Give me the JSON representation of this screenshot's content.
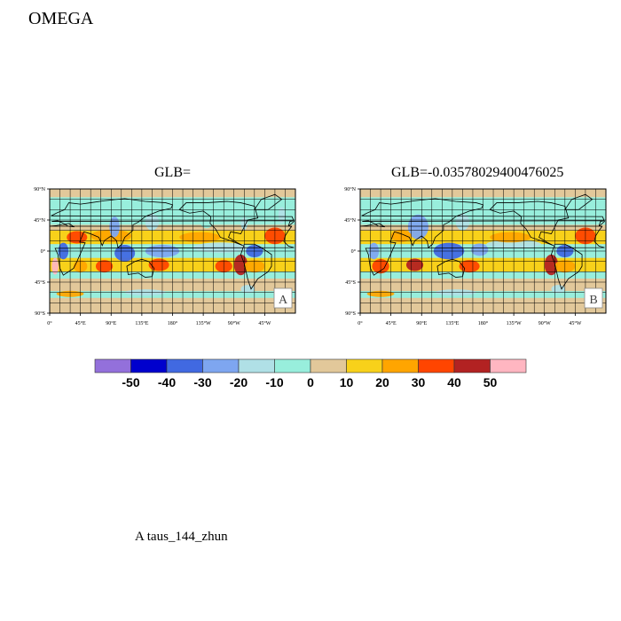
{
  "figure": {
    "title": "OMEGA",
    "caption": "A  taus_144_zhun"
  },
  "chart_data": [
    {
      "type": "heatmap",
      "panel_label": "A",
      "title": "GLB=",
      "x_ticks": [
        "0°",
        "45°E",
        "90°E",
        "135°E",
        "180°",
        "135°W",
        "90°W",
        "45°W"
      ],
      "y_ticks": [
        "90°N",
        "45°N",
        "0°",
        "45°S",
        "90°S"
      ],
      "xlim": [
        0,
        360
      ],
      "ylim": [
        -90,
        90
      ],
      "features": [
        {
          "lon": 165,
          "lat": 0,
          "w": 50,
          "h": 6,
          "v": -30
        },
        {
          "lon": 250,
          "lat": 5,
          "w": 80,
          "h": 5,
          "v": -20
        },
        {
          "lon": 300,
          "lat": 0,
          "w": 25,
          "h": 6,
          "v": -40
        },
        {
          "lon": 20,
          "lat": 0,
          "w": 15,
          "h": 8,
          "v": -40
        },
        {
          "lon": 110,
          "lat": -3,
          "w": 30,
          "h": 8,
          "v": -40
        },
        {
          "lon": 280,
          "lat": -20,
          "w": 20,
          "h": 10,
          "v": 40
        },
        {
          "lon": 255,
          "lat": -22,
          "w": 25,
          "h": 6,
          "v": 30
        },
        {
          "lon": 8,
          "lat": -22,
          "w": 10,
          "h": 8,
          "v": 50
        },
        {
          "lon": 45,
          "lat": -22,
          "w": 20,
          "h": 6,
          "v": 20
        },
        {
          "lon": 80,
          "lat": -22,
          "w": 25,
          "h": 6,
          "v": 30
        },
        {
          "lon": 160,
          "lat": -20,
          "w": 30,
          "h": 6,
          "v": 30
        },
        {
          "lon": 300,
          "lat": -22,
          "w": 30,
          "h": 6,
          "v": 20
        },
        {
          "lon": 330,
          "lat": 22,
          "w": 30,
          "h": 8,
          "v": 30
        },
        {
          "lon": 90,
          "lat": 22,
          "w": 60,
          "h": 6,
          "v": 20
        },
        {
          "lon": 220,
          "lat": 20,
          "w": 60,
          "h": 5,
          "v": 20
        },
        {
          "lon": 40,
          "lat": 20,
          "w": 30,
          "h": 6,
          "v": 30
        },
        {
          "lon": 340,
          "lat": 52,
          "w": 10,
          "h": 8,
          "v": -20
        },
        {
          "lon": 150,
          "lat": 42,
          "w": 20,
          "h": 8,
          "v": -20
        },
        {
          "lon": 230,
          "lat": 45,
          "w": 20,
          "h": 8,
          "v": -10
        },
        {
          "lon": 285,
          "lat": 40,
          "w": 10,
          "h": 6,
          "v": -20
        },
        {
          "lon": 95,
          "lat": 35,
          "w": 15,
          "h": 10,
          "v": -30
        },
        {
          "lon": 290,
          "lat": -55,
          "w": 20,
          "h": 4,
          "v": -20
        },
        {
          "lon": 140,
          "lat": -60,
          "w": 60,
          "h": 3,
          "v": -20
        },
        {
          "lon": 30,
          "lat": -62,
          "w": 40,
          "h": 3,
          "v": 20
        },
        {
          "lon": 300,
          "lat": 60,
          "w": 15,
          "h": 6,
          "v": -10
        }
      ]
    },
    {
      "type": "heatmap",
      "panel_label": "B",
      "title": "GLB=-0.03578029400476025",
      "x_ticks": [
        "0°",
        "45°E",
        "90°E",
        "135°E",
        "180°",
        "135°W",
        "90°W",
        "45°W"
      ],
      "y_ticks": [
        "90°N",
        "45°N",
        "0°",
        "45°S",
        "90°S"
      ],
      "xlim": [
        0,
        360
      ],
      "ylim": [
        -90,
        90
      ],
      "features": [
        {
          "lon": 130,
          "lat": 0,
          "w": 45,
          "h": 8,
          "v": -40
        },
        {
          "lon": 175,
          "lat": 2,
          "w": 25,
          "h": 6,
          "v": -30
        },
        {
          "lon": 300,
          "lat": 0,
          "w": 25,
          "h": 6,
          "v": -40
        },
        {
          "lon": 20,
          "lat": 0,
          "w": 15,
          "h": 8,
          "v": -30
        },
        {
          "lon": 85,
          "lat": 35,
          "w": 30,
          "h": 12,
          "v": -30
        },
        {
          "lon": 225,
          "lat": 10,
          "w": 80,
          "h": 4,
          "v": -20
        },
        {
          "lon": 280,
          "lat": -20,
          "w": 20,
          "h": 10,
          "v": 40
        },
        {
          "lon": 30,
          "lat": -22,
          "w": 25,
          "h": 7,
          "v": 30
        },
        {
          "lon": 80,
          "lat": -20,
          "w": 25,
          "h": 6,
          "v": 40
        },
        {
          "lon": 160,
          "lat": -22,
          "w": 30,
          "h": 6,
          "v": 30
        },
        {
          "lon": 300,
          "lat": -22,
          "w": 30,
          "h": 6,
          "v": 20
        },
        {
          "lon": 330,
          "lat": 22,
          "w": 30,
          "h": 8,
          "v": 30
        },
        {
          "lon": 220,
          "lat": 20,
          "w": 60,
          "h": 5,
          "v": 20
        },
        {
          "lon": 60,
          "lat": 22,
          "w": 30,
          "h": 6,
          "v": 20
        },
        {
          "lon": 150,
          "lat": 42,
          "w": 20,
          "h": 8,
          "v": -20
        },
        {
          "lon": 290,
          "lat": -55,
          "w": 20,
          "h": 4,
          "v": -20
        },
        {
          "lon": 140,
          "lat": -60,
          "w": 60,
          "h": 3,
          "v": -20
        },
        {
          "lon": 30,
          "lat": -62,
          "w": 40,
          "h": 3,
          "v": 20
        },
        {
          "lon": 300,
          "lat": 60,
          "w": 15,
          "h": 6,
          "v": -10
        }
      ]
    }
  ],
  "colorbar": {
    "labels": [
      "-50",
      "-40",
      "-30",
      "-20",
      "-10",
      "0",
      "10",
      "20",
      "30",
      "40",
      "50"
    ],
    "colors": [
      "#9370db",
      "#0000cd",
      "#4169e1",
      "#7ea6f0",
      "#b0e0e6",
      "#98eedc",
      "#e2c89a",
      "#f8d11a",
      "#ffa500",
      "#ff4500",
      "#b22222",
      "#ffb6c1"
    ]
  },
  "colors": {
    "land_outline": "#000000",
    "background": "#e2c89a"
  }
}
